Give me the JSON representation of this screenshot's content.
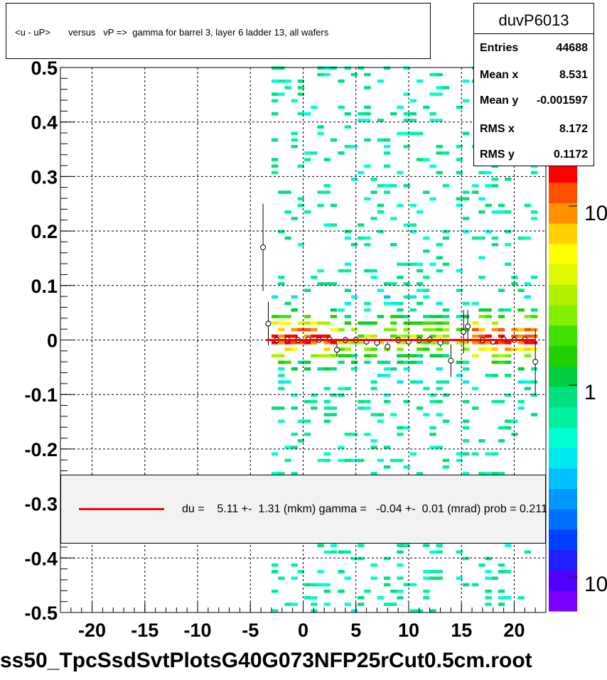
{
  "title": "<u - uP>       versus   vP =>  gamma for barrel 3, layer 6 ladder 13, all wafers",
  "stats": {
    "name": "duvP6013",
    "rows": [
      {
        "label": "Entries",
        "value": "44688"
      },
      {
        "label": "Mean x",
        "value": "8.531"
      },
      {
        "label": "Mean y",
        "value": "-0.001597"
      },
      {
        "label": "RMS x",
        "value": "8.172"
      },
      {
        "label": "RMS y",
        "value": "0.1172"
      }
    ]
  },
  "legend": {
    "text": "du =    5.11 +-  1.31 (mkm) gamma =   -0.04 +-  0.01 (mrad) prob = 0.211",
    "line_color": "#ff0000"
  },
  "file_name": "ss50_TpcSsdSvtPlotsG40G073NFP25rCut0.5cm.root",
  "colors": {
    "fit_line": "#ff0000",
    "palette": [
      "#7a00ff",
      "#5000ff",
      "#2020ff",
      "#0040ff",
      "#0070ff",
      "#0098ff",
      "#00c0ff",
      "#00e8f0",
      "#00ffd0",
      "#00f0a0",
      "#00e080",
      "#00d040",
      "#20d000",
      "#40e000",
      "#80f000",
      "#b0f000",
      "#e0f800",
      "#ffff00",
      "#ffd000",
      "#ff9000",
      "#ff5000",
      "#ff0000"
    ]
  },
  "chart_data": {
    "type": "heatmap",
    "title": "<u - uP>       versus   vP =>  gamma for barrel 3, layer 6 ladder 13, all wafers",
    "xlabel": "",
    "ylabel": "",
    "xlim": [
      -23,
      23
    ],
    "ylim": [
      -0.5,
      0.5
    ],
    "x_ticks": [
      "-20",
      "-15",
      "-10",
      "-5",
      "0",
      "5",
      "10",
      "15",
      "20"
    ],
    "y_ticks": [
      "-0.5",
      "-0.4",
      "-0.3",
      "-0.2",
      "-0.1",
      "0",
      "0.1",
      "0.2",
      "0.3",
      "0.4",
      "0.5"
    ],
    "z_ticks": [
      "1",
      "10",
      "10"
    ],
    "z_scale": "log",
    "grid": true,
    "populated_x_bands": [
      [
        -3,
        3
      ],
      [
        3.3,
        13.5
      ],
      [
        14.5,
        15.5
      ],
      [
        16,
        22
      ]
    ],
    "profile_points": [
      {
        "x": -3.8,
        "y": 0.17,
        "err": 0.08
      },
      {
        "x": -3.3,
        "y": 0.03,
        "err": 0.04
      },
      {
        "x": -2.5,
        "y": 0.0,
        "err": 0.005
      },
      {
        "x": -1.5,
        "y": 0.001,
        "err": 0.004
      },
      {
        "x": -0.5,
        "y": 0.0,
        "err": 0.004
      },
      {
        "x": 0.5,
        "y": 0.001,
        "err": 0.004
      },
      {
        "x": 1.5,
        "y": 0.0,
        "err": 0.004
      },
      {
        "x": 2.5,
        "y": 0.001,
        "err": 0.005
      },
      {
        "x": 3.2,
        "y": -0.018,
        "err": 0.012
      },
      {
        "x": 4.0,
        "y": 0.0,
        "err": 0.006
      },
      {
        "x": 5.0,
        "y": 0.0,
        "err": 0.006
      },
      {
        "x": 6.0,
        "y": -0.003,
        "err": 0.006
      },
      {
        "x": 7.0,
        "y": -0.005,
        "err": 0.007
      },
      {
        "x": 8.0,
        "y": -0.012,
        "err": 0.008
      },
      {
        "x": 9.0,
        "y": 0.0,
        "err": 0.006
      },
      {
        "x": 10.0,
        "y": -0.003,
        "err": 0.007
      },
      {
        "x": 11.0,
        "y": 0.0,
        "err": 0.006
      },
      {
        "x": 12.0,
        "y": 0.001,
        "err": 0.006
      },
      {
        "x": 13.0,
        "y": -0.005,
        "err": 0.008
      },
      {
        "x": 14.0,
        "y": -0.038,
        "err": 0.03
      },
      {
        "x": 15.2,
        "y": 0.015,
        "err": 0.04
      },
      {
        "x": 15.6,
        "y": 0.025,
        "err": 0.03
      },
      {
        "x": 17.0,
        "y": 0.0,
        "err": 0.005
      },
      {
        "x": 18.0,
        "y": -0.003,
        "err": 0.005
      },
      {
        "x": 19.0,
        "y": 0.001,
        "err": 0.005
      },
      {
        "x": 20.0,
        "y": 0.0,
        "err": 0.005
      },
      {
        "x": 21.0,
        "y": 0.001,
        "err": 0.005
      },
      {
        "x": 22.0,
        "y": -0.04,
        "err": 0.06
      }
    ],
    "fit_line": {
      "x": [
        -3.5,
        22
      ],
      "y": [
        0.0,
        0.0
      ]
    }
  }
}
